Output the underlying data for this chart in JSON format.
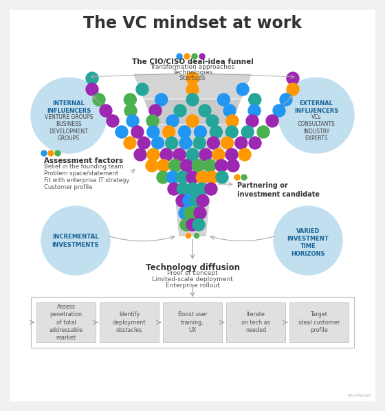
{
  "title": "The VC mindset at work",
  "bg_color": "#f0f0f0",
  "inner_bg": "#ffffff",
  "funnel_color": "#d8d8d8",
  "funnel_stroke": "#cccccc",
  "dot_colors": [
    "#2196F3",
    "#FF9800",
    "#4CAF50",
    "#9C27B0",
    "#26a69a"
  ],
  "funnel_title": "The CIO/CISO deal-idea funnel",
  "funnel_subtitles": [
    "Transformation approaches",
    "Technologies",
    "Startups"
  ],
  "assessment_title": "Assessment factors",
  "assessment_items": [
    "Belief in the founding team",
    "Problem space/statement",
    "Fit with enterprise IT strategy",
    "Customer profile"
  ],
  "partnering_text": "Partnering or\ninvestment candidate",
  "tech_diffusion_title": "Technology diffusion",
  "tech_diffusion_items": [
    "Proof of concept",
    "Limited-scale deployment",
    "Enterprise rollout"
  ],
  "bottom_boxes": [
    "Assess\npenetration\nof total\naddressable\nmarket",
    "Identify\ndeployment\nobstacles",
    "Boost user\ntraining,\nUX",
    "Iterate\non tech as\nneeded",
    "Target\nideal customer\nprofile"
  ],
  "circle_color": "#c2dff0",
  "arrow_color": "#999999",
  "text_dark": "#333333",
  "text_blue": "#1a6496",
  "assess_dot_colors": [
    "#2196F3",
    "#FF9800",
    "#4CAF50"
  ],
  "partner_dot_colors": [
    "#FF9800",
    "#4CAF50"
  ],
  "top_dot_colors": [
    "#2196F3",
    "#FF9800",
    "#4CAF50",
    "#9C27B0"
  ]
}
